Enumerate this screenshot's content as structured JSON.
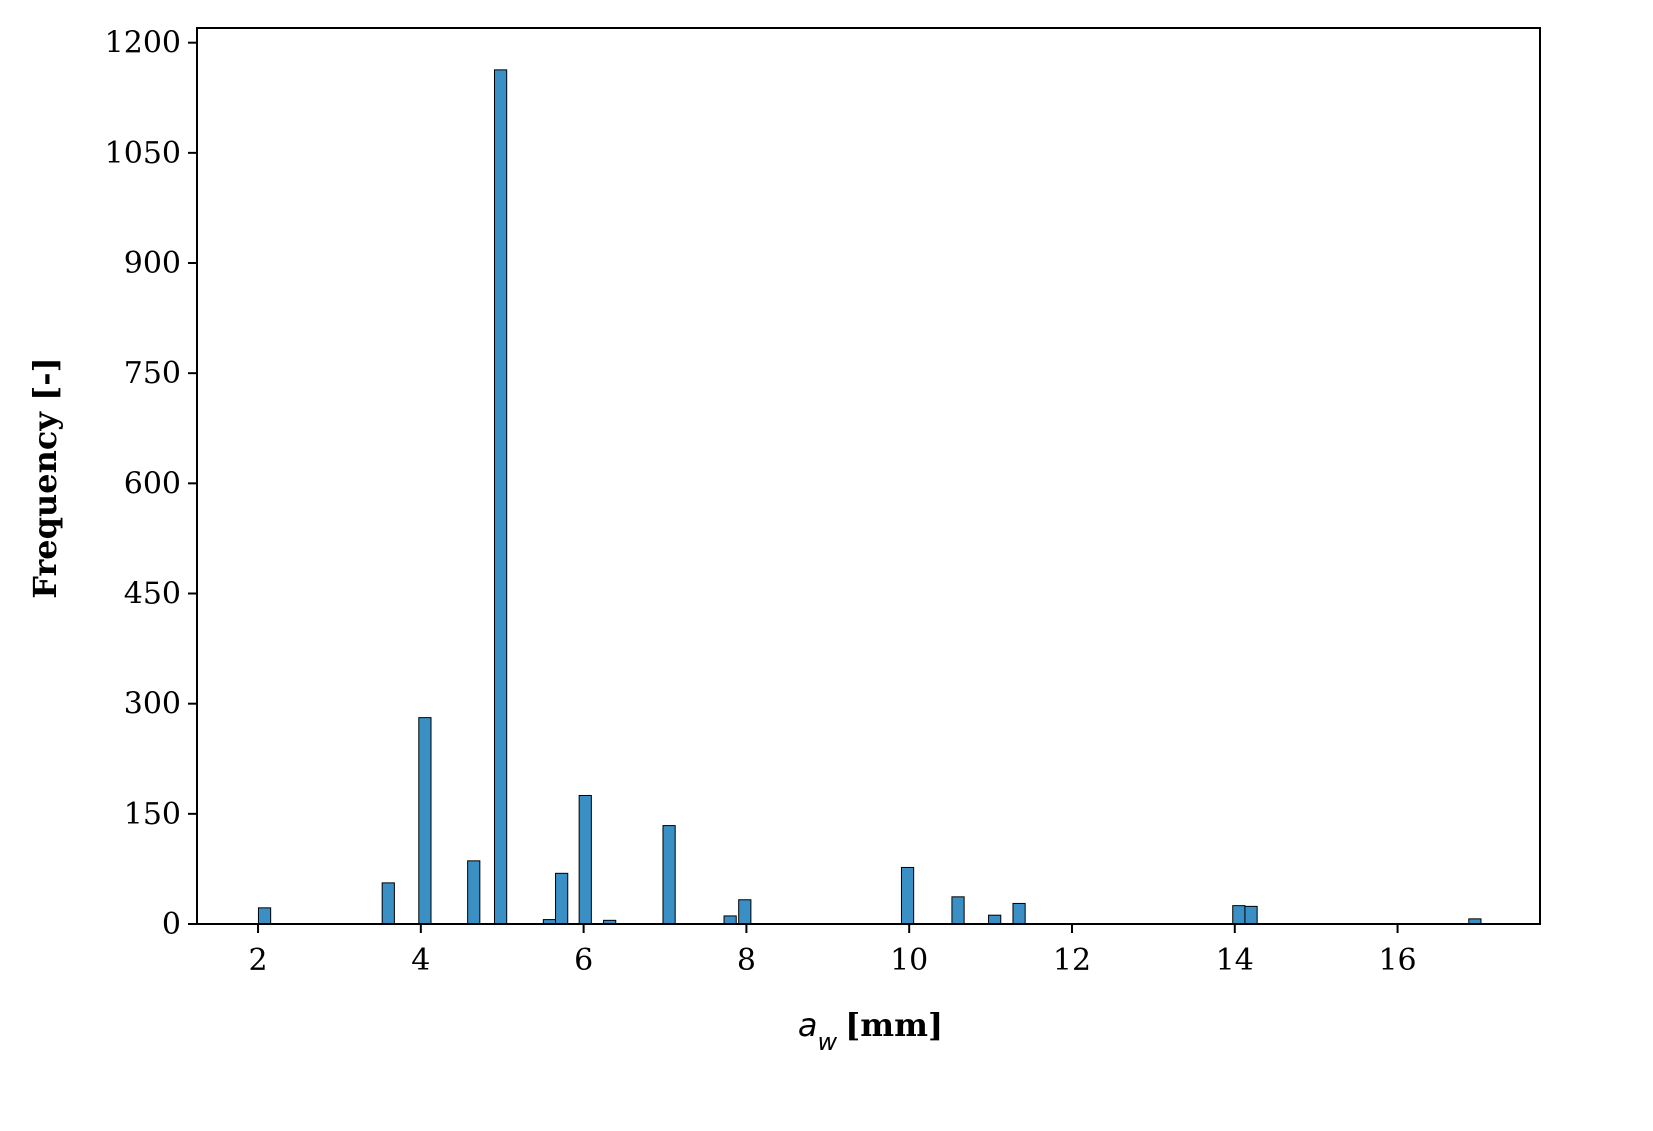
{
  "chart_data": {
    "type": "bar",
    "title": "",
    "xlabel": {
      "symbol": "a",
      "subscript": "w",
      "unit": "[mm]"
    },
    "ylabel": "Frequency [-]",
    "xlim": [
      1.25,
      17.75
    ],
    "ylim": [
      0,
      1220
    ],
    "xticks": [
      2,
      4,
      6,
      8,
      10,
      12,
      14,
      16
    ],
    "yticks": [
      0,
      150,
      300,
      450,
      600,
      750,
      900,
      1050,
      1200
    ],
    "bin_width": 0.15,
    "bar_color": "#3a8fc5",
    "edge_color": "#000000",
    "grid": false,
    "legend": "none",
    "bars": [
      {
        "x": 2.08,
        "y": 22
      },
      {
        "x": 3.6,
        "y": 56
      },
      {
        "x": 4.05,
        "y": 281
      },
      {
        "x": 4.65,
        "y": 86
      },
      {
        "x": 4.98,
        "y": 1163
      },
      {
        "x": 5.58,
        "y": 6
      },
      {
        "x": 5.73,
        "y": 69
      },
      {
        "x": 6.02,
        "y": 175
      },
      {
        "x": 6.32,
        "y": 5
      },
      {
        "x": 7.05,
        "y": 134
      },
      {
        "x": 7.8,
        "y": 11
      },
      {
        "x": 7.98,
        "y": 33
      },
      {
        "x": 9.98,
        "y": 77
      },
      {
        "x": 10.6,
        "y": 37
      },
      {
        "x": 11.05,
        "y": 12
      },
      {
        "x": 11.35,
        "y": 28
      },
      {
        "x": 14.05,
        "y": 25
      },
      {
        "x": 14.2,
        "y": 24
      },
      {
        "x": 16.95,
        "y": 7
      }
    ]
  }
}
